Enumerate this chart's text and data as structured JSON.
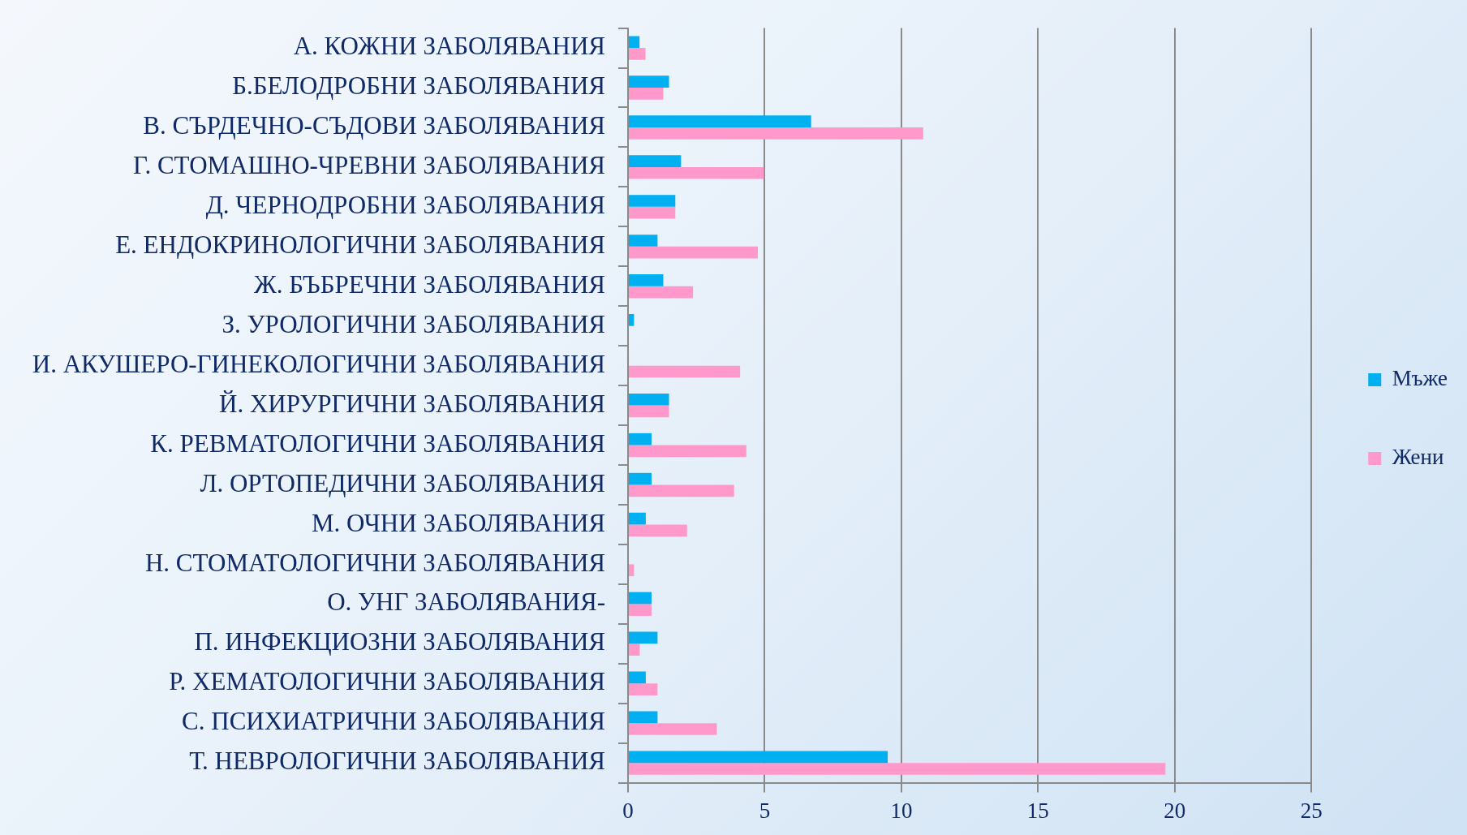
{
  "chart_data": {
    "type": "bar",
    "orientation": "horizontal",
    "categories": [
      "А. КОЖНИ ЗАБОЛЯВАНИЯ",
      "Б.БЕЛОДРОБНИ ЗАБОЛЯВАНИЯ",
      "В. СЪРДЕЧНО-СЪДОВИ ЗАБОЛЯВАНИЯ",
      "Г. СТОМАШНО-ЧРЕВНИ ЗАБОЛЯВАНИЯ",
      "Д. ЧЕРНОДРОБНИ ЗАБОЛЯВАНИЯ",
      "Е. ЕНДОКРИНОЛОГИЧНИ ЗАБОЛЯВАНИЯ",
      "Ж. БЪБРЕЧНИ ЗАБОЛЯВАНИЯ",
      "З. УРОЛОГИЧНИ ЗАБОЛЯВАНИЯ",
      "И. АКУШЕРО-ГИНЕКОЛОГИЧНИ ЗАБОЛЯВАНИЯ",
      "Й. ХИРУРГИЧНИ ЗАБОЛЯВАНИЯ",
      "К. РЕВМАТОЛОГИЧНИ ЗАБОЛЯВАНИЯ",
      "Л. ОРТОПЕДИЧНИ ЗАБОЛЯВАНИЯ",
      "М. ОЧНИ ЗАБОЛЯВАНИЯ",
      "Н. СТОМАТОЛОГИЧНИ ЗАБОЛЯВАНИЯ",
      "О. УНГ ЗАБОЛЯВАНИЯ-",
      "П. ИНФЕКЦИОЗНИ ЗАБОЛЯВАНИЯ",
      "Р. ХЕМАТОЛОГИЧНИ ЗАБОЛЯВАНИЯ",
      "С. ПСИХИАТРИЧНИ ЗАБОЛЯВАНИЯ",
      "Т. НЕВРОЛОГИЧНИ ЗАБОЛЯВАНИЯ"
    ],
    "series": [
      {
        "name": "Мъже",
        "color": "#00b0f0",
        "values": [
          0.42,
          1.5,
          6.7,
          1.94,
          1.73,
          1.08,
          1.29,
          0.22,
          0,
          1.5,
          0.86,
          0.86,
          0.65,
          0,
          0.86,
          1.08,
          0.65,
          1.08,
          9.5
        ]
      },
      {
        "name": "Жени",
        "color": "#ff99cc",
        "values": [
          0.64,
          1.29,
          10.8,
          4.97,
          1.73,
          4.75,
          2.38,
          0,
          4.1,
          1.5,
          4.33,
          3.88,
          2.16,
          0.22,
          0.86,
          0.43,
          1.08,
          3.25,
          19.66
        ]
      }
    ],
    "xlim": [
      0,
      25
    ],
    "xticks": [
      0,
      5,
      10,
      15,
      20,
      25
    ],
    "grid": "x",
    "legend": "right"
  }
}
